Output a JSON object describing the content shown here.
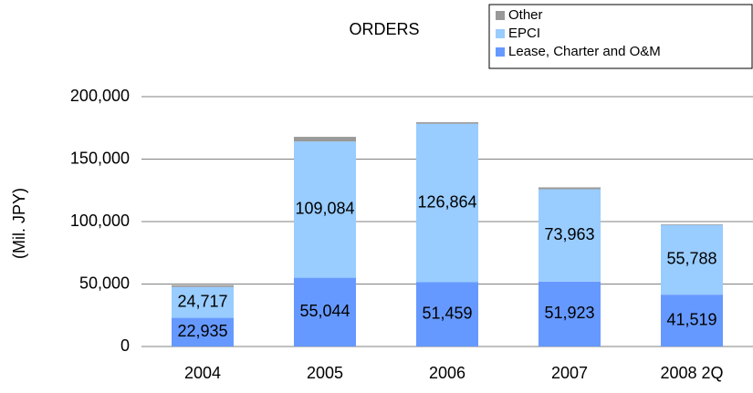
{
  "chart_data": {
    "type": "stacked-bar",
    "title": "ORDERS",
    "y_label": "(Mil. JPY)",
    "categories": [
      "2004",
      "2005",
      "2006",
      "2007",
      "2008 2Q"
    ],
    "series": [
      {
        "name": "Lease, Charter and O&M",
        "color": "#6699ff",
        "values": [
          22935,
          55044,
          51459,
          51923,
          41519
        ],
        "value_labels": [
          "22,935",
          "55,044",
          "51,459",
          "51,923",
          "41,519"
        ]
      },
      {
        "name": "EPCI",
        "color": "#99ccff",
        "values": [
          24717,
          109084,
          126864,
          73963,
          55788
        ],
        "value_labels": [
          "24,717",
          "109,084",
          "126,864",
          "73,963",
          "55,788"
        ]
      },
      {
        "name": "Other",
        "color": "#999999",
        "values": [
          1500,
          3700,
          1200,
          1500,
          500
        ]
      }
    ],
    "ylim": [
      0,
      200000
    ],
    "yticks": [
      0,
      {
        "value": 50000,
        "label": "50,000"
      },
      {
        "value": 100000,
        "label": "100,000"
      },
      {
        "value": 150000,
        "label": "150,000"
      },
      {
        "value": 200000,
        "label": "200,000"
      }
    ],
    "grid": true,
    "legend": "top-right"
  }
}
